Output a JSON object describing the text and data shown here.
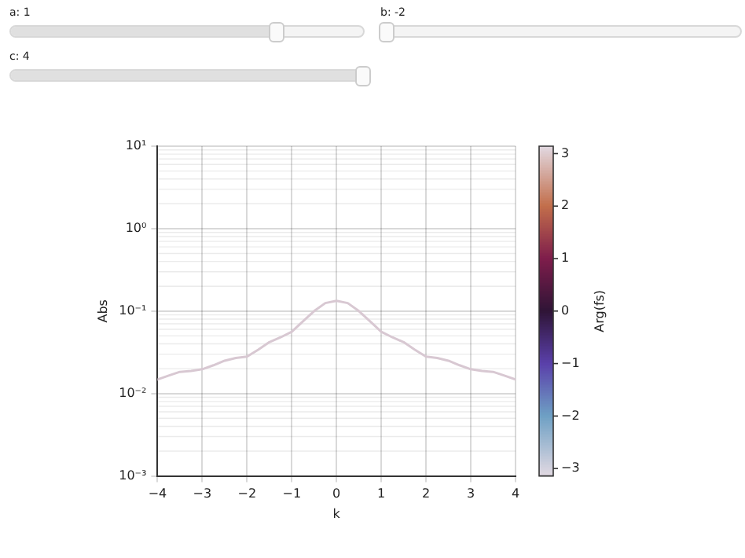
{
  "chart_data": {
    "type": "line",
    "xlabel": "k",
    "ylabel": "Abs",
    "clabel": "Arg(fs)",
    "annotations": [
      "a: 1",
      "b: -2",
      "c: 4"
    ],
    "x": [
      -4,
      -3.75,
      -3.5,
      -3.25,
      -3,
      -2.75,
      -2.5,
      -2.25,
      -2,
      -1.75,
      -1.5,
      -1.25,
      -1,
      -0.75,
      -0.5,
      -0.25,
      0,
      0.25,
      0.5,
      0.75,
      1,
      1.25,
      1.5,
      1.75,
      2,
      2.25,
      2.5,
      2.75,
      3,
      3.25,
      3.5,
      3.75,
      4
    ],
    "values": [
      0.0148,
      0.0165,
      0.0183,
      0.0188,
      0.0197,
      0.022,
      0.025,
      0.027,
      0.028,
      0.034,
      0.042,
      0.048,
      0.056,
      0.075,
      0.1,
      0.125,
      0.133,
      0.125,
      0.1,
      0.075,
      0.056,
      0.048,
      0.042,
      0.034,
      0.028,
      0.027,
      0.025,
      0.022,
      0.0197,
      0.0188,
      0.0183,
      0.0165,
      0.0148
    ],
    "color": "#d8c8d2",
    "log": "y",
    "grid": true,
    "xlim": [
      -4,
      4
    ],
    "xticks": [
      {
        "value": -4,
        "label": "−4"
      },
      {
        "value": -3,
        "label": "−3"
      },
      {
        "value": -2,
        "label": "−2"
      },
      {
        "value": -1,
        "label": "−1"
      },
      0,
      1,
      2,
      3,
      4
    ],
    "ylim": [
      0.001,
      10
    ],
    "yticks": [
      {
        "value": 0.001,
        "label": "10⁻³"
      },
      {
        "value": 0.01,
        "label": "10⁻²"
      },
      {
        "value": 0.1,
        "label": "10⁻¹"
      },
      {
        "value": 1,
        "label": "10⁰"
      },
      {
        "value": 10,
        "label": "10¹"
      }
    ],
    "clim": [
      -3.1416,
      3.1416
    ],
    "cticks": [
      {
        "value": -3,
        "label": "−3"
      },
      {
        "value": -2,
        "label": "−2"
      },
      {
        "value": -1,
        "label": "−1"
      },
      0,
      1,
      2,
      3
    ]
  }
}
